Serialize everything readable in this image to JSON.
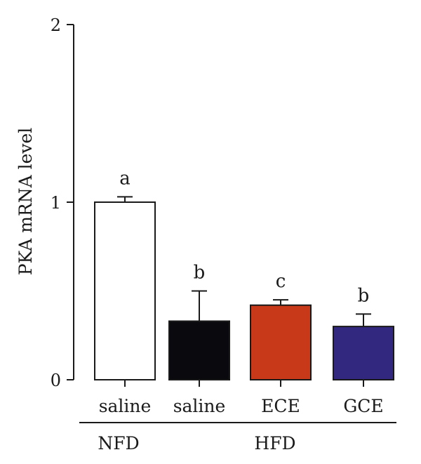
{
  "chart_data": {
    "type": "bar",
    "ylabel": "PKA mRNA level",
    "ylim": [
      0,
      2
    ],
    "yticks": [
      0,
      1,
      2
    ],
    "categories": [
      "saline",
      "saline",
      "ECE",
      "GCE"
    ],
    "groups": [
      {
        "label": "NFD",
        "members": [
          0
        ]
      },
      {
        "label": "HFD",
        "members": [
          1,
          2,
          3
        ]
      }
    ],
    "values": [
      1.0,
      0.33,
      0.42,
      0.3
    ],
    "errors": [
      0.03,
      0.17,
      0.03,
      0.07
    ],
    "significance": [
      "a",
      "b",
      "c",
      "b"
    ],
    "colors": [
      "#ffffff",
      "#0a0a0e",
      "#c8391a",
      "#33287f"
    ]
  }
}
